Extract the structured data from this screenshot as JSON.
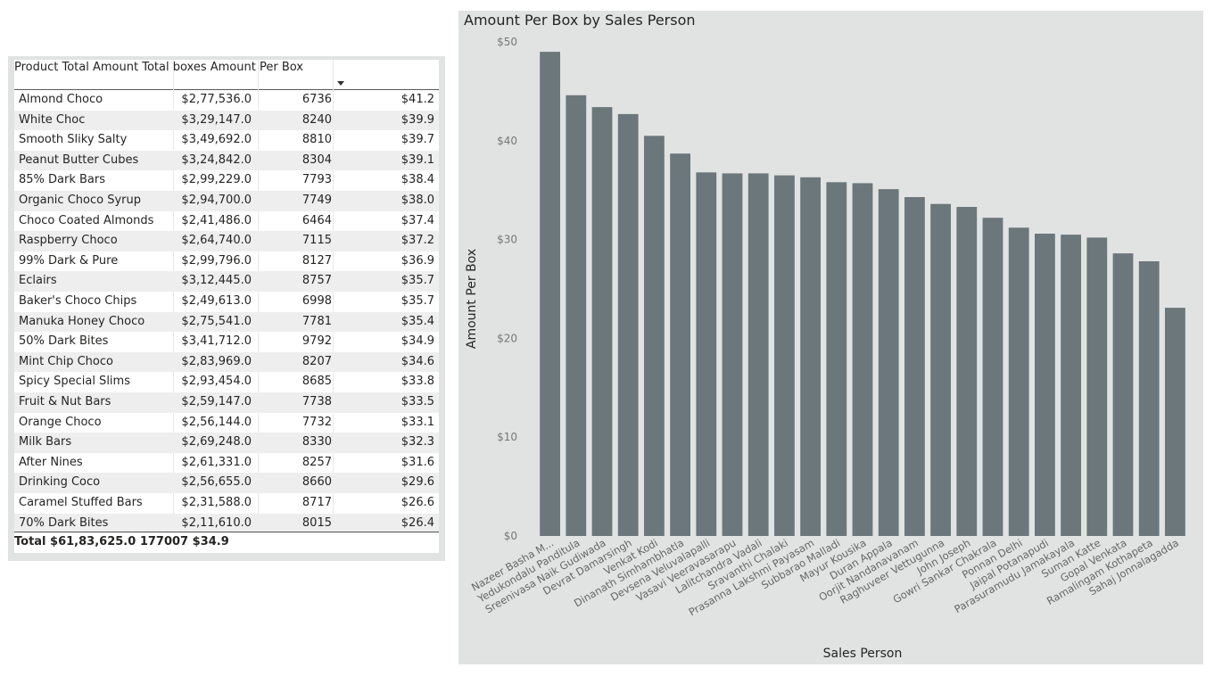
{
  "table": {
    "headers": [
      "Product",
      "Total Amount",
      "Total boxes",
      "Amount Per Box"
    ],
    "rows": [
      [
        "Almond Choco",
        "$2,77,536.0",
        "6736",
        "$41.2"
      ],
      [
        "White Choc",
        "$3,29,147.0",
        "8240",
        "$39.9"
      ],
      [
        "Smooth Sliky Salty",
        "$3,49,692.0",
        "8810",
        "$39.7"
      ],
      [
        "Peanut Butter Cubes",
        "$3,24,842.0",
        "8304",
        "$39.1"
      ],
      [
        "85% Dark Bars",
        "$2,99,229.0",
        "7793",
        "$38.4"
      ],
      [
        "Organic Choco Syrup",
        "$2,94,700.0",
        "7749",
        "$38.0"
      ],
      [
        "Choco Coated Almonds",
        "$2,41,486.0",
        "6464",
        "$37.4"
      ],
      [
        "Raspberry Choco",
        "$2,64,740.0",
        "7115",
        "$37.2"
      ],
      [
        "99% Dark & Pure",
        "$2,99,796.0",
        "8127",
        "$36.9"
      ],
      [
        "Eclairs",
        "$3,12,445.0",
        "8757",
        "$35.7"
      ],
      [
        "Baker's Choco Chips",
        "$2,49,613.0",
        "6998",
        "$35.7"
      ],
      [
        "Manuka Honey Choco",
        "$2,75,541.0",
        "7781",
        "$35.4"
      ],
      [
        "50% Dark Bites",
        "$3,41,712.0",
        "9792",
        "$34.9"
      ],
      [
        "Mint Chip Choco",
        "$2,83,969.0",
        "8207",
        "$34.6"
      ],
      [
        "Spicy Special Slims",
        "$2,93,454.0",
        "8685",
        "$33.8"
      ],
      [
        "Fruit & Nut Bars",
        "$2,59,147.0",
        "7738",
        "$33.5"
      ],
      [
        "Orange Choco",
        "$2,56,144.0",
        "7732",
        "$33.1"
      ],
      [
        "Milk Bars",
        "$2,69,248.0",
        "8330",
        "$32.3"
      ],
      [
        "After Nines",
        "$2,61,331.0",
        "8257",
        "$31.6"
      ],
      [
        "Drinking Coco",
        "$2,56,655.0",
        "8660",
        "$29.6"
      ],
      [
        "Caramel Stuffed Bars",
        "$2,31,588.0",
        "8717",
        "$26.6"
      ],
      [
        "70% Dark Bites",
        "$2,11,610.0",
        "8015",
        "$26.4"
      ]
    ],
    "total": [
      "Total",
      "$61,83,625.0",
      "177007",
      "$34.9"
    ],
    "sort_column": "Amount Per Box",
    "sort_direction": "descending"
  },
  "chart_data": {
    "type": "bar",
    "title": "Amount Per Box by Sales Person",
    "xlabel": "Sales Person",
    "ylabel": "Amount Per Box",
    "ylim": [
      0,
      50
    ],
    "yticks": [
      "$0",
      "$10",
      "$20",
      "$30",
      "$40",
      "$50"
    ],
    "ytick_values": [
      0,
      10,
      20,
      30,
      40,
      50
    ],
    "grid": false,
    "bar_color": "#6b777b",
    "categories": [
      "Nazeer Basha M...",
      "Yedukondalu Panditula",
      "Sreenivasa Naik Gudiwada",
      "Devrat Damarsingh",
      "Venkat Kodi",
      "Dinanath Simhambhatla",
      "Devsena Veluvalapalli",
      "Vasavi Veeravasarapu",
      "Lalitchandra Vadali",
      "Sravanthi Chalaki",
      "Prasanna Lakshmi Payasam",
      "Subbarao Malladi",
      "Mayur Kousika",
      "Duran Appala",
      "Oorjit Nandanavanam",
      "Raghuveer Vettugunna",
      "John Joseph",
      "Gowri Sankar Chakrala",
      "Ponnan Delhi",
      "Jaipal Potanapudi",
      "Parasuramudu Jamakayala",
      "Suman Katte",
      "Gopal Venkata",
      "Ramalingam Kothapeta",
      "Sahaj Jonnalagadda"
    ],
    "values": [
      49.0,
      44.6,
      43.4,
      42.7,
      40.5,
      38.7,
      36.8,
      36.7,
      36.7,
      36.5,
      36.3,
      35.8,
      35.7,
      35.1,
      34.3,
      33.6,
      33.3,
      32.2,
      31.2,
      30.6,
      30.5,
      30.2,
      28.6,
      27.8,
      23.1
    ]
  }
}
